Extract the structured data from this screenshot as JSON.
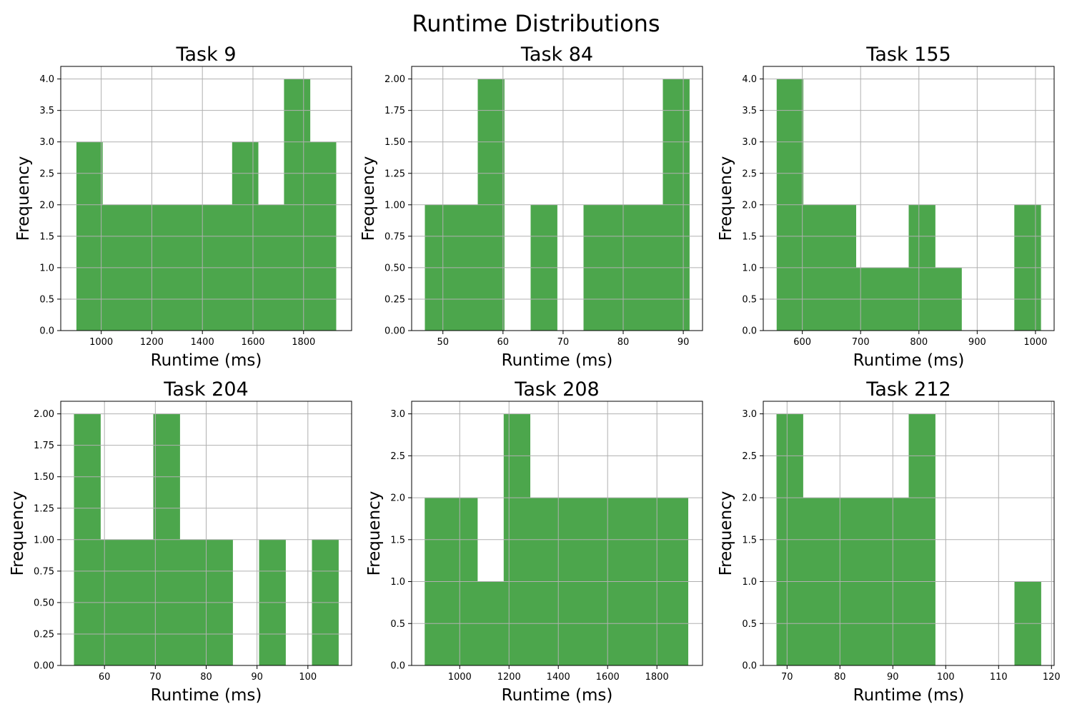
{
  "figure": {
    "title": "Runtime Distributions"
  },
  "colors": {
    "bar": "#4ca64c",
    "grid": "#b0b0b0",
    "axes": "#000000"
  },
  "chart_data": [
    {
      "type": "bar",
      "title": "Task 9",
      "xlabel": "Runtime (ms)",
      "ylabel": "Frequency",
      "xlim": [
        840,
        1990
      ],
      "ylim": [
        0,
        4.2
      ],
      "xticks": [
        1000,
        1200,
        1400,
        1600,
        1800
      ],
      "yticks": [
        0.0,
        0.5,
        1.0,
        1.5,
        2.0,
        2.5,
        3.0,
        3.5,
        4.0
      ],
      "ytick_labels": [
        "0.0",
        "0.5",
        "1.0",
        "1.5",
        "2.0",
        "2.5",
        "3.0",
        "3.5",
        "4.0"
      ],
      "bin_start": 902,
      "bin_width": 102.6,
      "values": [
        3,
        2,
        2,
        2,
        2,
        2,
        3,
        2,
        4,
        3
      ],
      "grid": true
    },
    {
      "type": "bar",
      "title": "Task 84",
      "xlabel": "Runtime (ms)",
      "ylabel": "Frequency",
      "xlim": [
        44.8,
        93.2
      ],
      "ylim": [
        0,
        2.1
      ],
      "xticks": [
        50,
        60,
        70,
        80,
        90
      ],
      "yticks": [
        0,
        0.25,
        0.5,
        0.75,
        1.0,
        1.25,
        1.5,
        1.75,
        2.0
      ],
      "ytick_labels": [
        "0.00",
        "0.25",
        "0.50",
        "0.75",
        "1.00",
        "1.25",
        "1.50",
        "1.75",
        "2.00"
      ],
      "bin_start": 47,
      "bin_width": 4.4,
      "values": [
        1,
        1,
        2,
        0,
        1,
        0,
        1,
        1,
        1,
        2
      ],
      "grid": true
    },
    {
      "type": "bar",
      "title": "Task 155",
      "xlabel": "Runtime (ms)",
      "ylabel": "Frequency",
      "xlim": [
        533,
        1032
      ],
      "ylim": [
        0,
        4.2
      ],
      "xticks": [
        600,
        700,
        800,
        900,
        1000
      ],
      "yticks": [
        0.0,
        0.5,
        1.0,
        1.5,
        2.0,
        2.5,
        3.0,
        3.5,
        4.0
      ],
      "ytick_labels": [
        "0.0",
        "0.5",
        "1.0",
        "1.5",
        "2.0",
        "2.5",
        "3.0",
        "3.5",
        "4.0"
      ],
      "bin_start": 556,
      "bin_width": 45.3,
      "values": [
        4,
        2,
        2,
        1,
        1,
        2,
        1,
        0,
        0,
        2
      ],
      "grid": true
    },
    {
      "type": "bar",
      "title": "Task 204",
      "xlabel": "Runtime (ms)",
      "ylabel": "Frequency",
      "xlim": [
        51.4,
        108.6
      ],
      "ylim": [
        0,
        2.1
      ],
      "xticks": [
        60,
        70,
        80,
        90,
        100
      ],
      "yticks": [
        0,
        0.25,
        0.5,
        0.75,
        1.0,
        1.25,
        1.5,
        1.75,
        2.0
      ],
      "ytick_labels": [
        "0.00",
        "0.25",
        "0.50",
        "0.75",
        "1.00",
        "1.25",
        "1.50",
        "1.75",
        "2.00"
      ],
      "bin_start": 54,
      "bin_width": 5.2,
      "values": [
        2,
        1,
        1,
        2,
        1,
        1,
        0,
        1,
        0,
        1
      ],
      "grid": true
    },
    {
      "type": "bar",
      "title": "Task 208",
      "xlabel": "Runtime (ms)",
      "ylabel": "Frequency",
      "xlim": [
        805,
        1985
      ],
      "ylim": [
        0,
        3.15
      ],
      "xticks": [
        1000,
        1200,
        1400,
        1600,
        1800
      ],
      "yticks": [
        0.0,
        0.5,
        1.0,
        1.5,
        2.0,
        2.5,
        3.0
      ],
      "ytick_labels": [
        "0.0",
        "0.5",
        "1.0",
        "1.5",
        "2.0",
        "2.5",
        "3.0"
      ],
      "bin_start": 858,
      "bin_width": 106.8,
      "values": [
        2,
        2,
        1,
        3,
        2,
        2,
        2,
        2,
        2,
        2
      ],
      "grid": true
    },
    {
      "type": "bar",
      "title": "Task 212",
      "xlabel": "Runtime (ms)",
      "ylabel": "Frequency",
      "xlim": [
        65.5,
        120.5
      ],
      "ylim": [
        0,
        3.15
      ],
      "xticks": [
        70,
        80,
        90,
        100,
        110,
        120
      ],
      "yticks": [
        0.0,
        0.5,
        1.0,
        1.5,
        2.0,
        2.5,
        3.0
      ],
      "ytick_labels": [
        "0.0",
        "0.5",
        "1.0",
        "1.5",
        "2.0",
        "2.5",
        "3.0"
      ],
      "bin_start": 68,
      "bin_width": 5.0,
      "values": [
        3,
        2,
        2,
        2,
        2,
        3,
        0,
        0,
        0,
        1
      ],
      "grid": true
    }
  ]
}
